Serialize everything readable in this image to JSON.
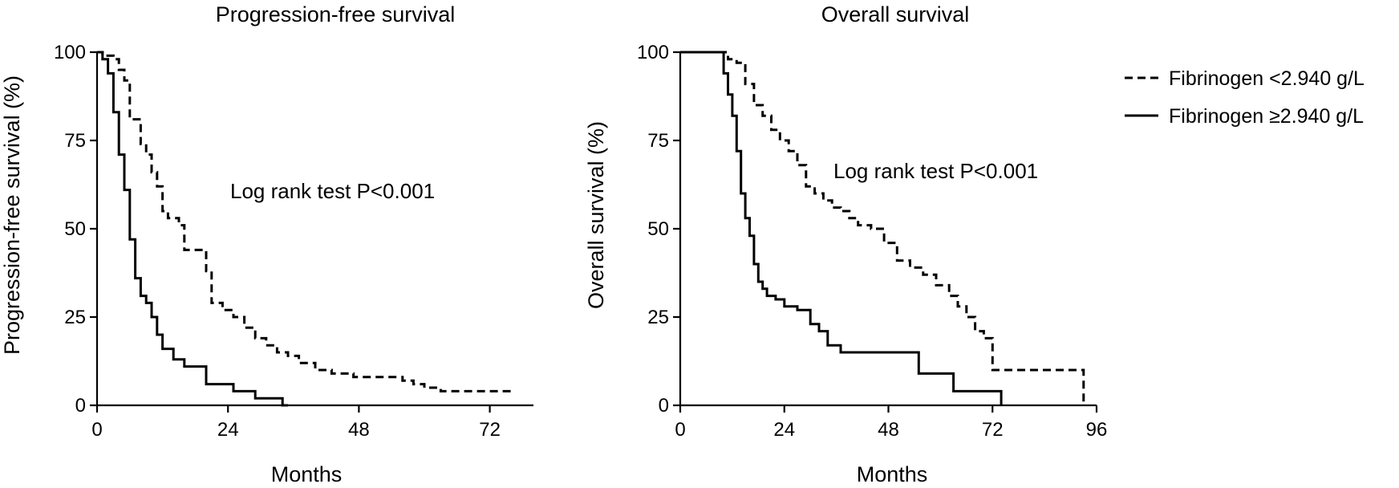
{
  "chart_data": [
    {
      "type": "line",
      "subtype": "kaplan-meier",
      "title": "Progression-free survival",
      "xlabel": "Months",
      "ylabel": "Progression-free survival (%)",
      "xlim": [
        0,
        80
      ],
      "ylim": [
        0,
        100
      ],
      "xticks": [
        0,
        24,
        48,
        72
      ],
      "yticks": [
        0,
        25,
        50,
        75,
        100
      ],
      "annotation": "Log rank test P<0.001",
      "series": [
        {
          "name": "Fibrinogen <2.940 g/L",
          "style": "dashed",
          "x": [
            0,
            1,
            3,
            4,
            5,
            6,
            8,
            9,
            10,
            11,
            12,
            13,
            15,
            16,
            19,
            20,
            21,
            23,
            25,
            27,
            29,
            31,
            33,
            35,
            37,
            40,
            43,
            47,
            51,
            56,
            58,
            60,
            63,
            67,
            72,
            76
          ],
          "y": [
            100,
            99,
            98,
            95,
            92,
            81,
            74,
            71,
            66,
            62,
            55,
            53,
            51,
            44,
            44,
            38,
            29,
            27,
            25,
            22,
            19,
            17,
            15,
            14,
            12,
            10,
            9,
            8,
            8,
            7,
            6,
            5,
            4,
            4,
            4,
            4
          ]
        },
        {
          "name": "Fibrinogen ≥2.940 g/L",
          "style": "solid",
          "x": [
            0,
            1,
            2,
            3,
            4,
            5,
            6,
            7,
            8,
            9,
            10,
            11,
            12,
            14,
            16,
            20,
            25,
            29,
            34,
            35
          ],
          "y": [
            100,
            98,
            94,
            83,
            71,
            61,
            47,
            36,
            31,
            29,
            25,
            20,
            16,
            13,
            11,
            6,
            4,
            2,
            0,
            0
          ]
        }
      ]
    },
    {
      "type": "line",
      "subtype": "kaplan-meier",
      "title": "Overall survival",
      "xlabel": "Months",
      "ylabel": "Overall survival (%)",
      "xlim": [
        0,
        96
      ],
      "ylim": [
        0,
        100
      ],
      "xticks": [
        0,
        24,
        48,
        72,
        96
      ],
      "yticks": [
        0,
        25,
        50,
        75,
        100
      ],
      "annotation": "Log rank test P<0.001",
      "series": [
        {
          "name": "Fibrinogen <2.940 g/L",
          "style": "dashed",
          "x": [
            0,
            11,
            13,
            15,
            17,
            19,
            21,
            23,
            25,
            27,
            29,
            31,
            33,
            35,
            37,
            39,
            41,
            44,
            47,
            50,
            53,
            56,
            59,
            62,
            64,
            66,
            68,
            70,
            72,
            92,
            93
          ],
          "y": [
            100,
            98,
            97,
            91,
            85,
            82,
            78,
            75,
            72,
            68,
            62,
            60,
            58,
            56,
            55,
            53,
            51,
            50,
            46,
            41,
            39,
            37,
            34,
            31,
            28,
            25,
            21,
            19,
            10,
            10,
            0
          ]
        },
        {
          "name": "Fibrinogen ≥2.940 g/L",
          "style": "solid",
          "x": [
            0,
            10,
            11,
            12,
            13,
            14,
            15,
            16,
            17,
            18,
            19,
            20,
            22,
            24,
            27,
            30,
            32,
            34,
            37,
            40,
            44,
            48,
            55,
            63,
            73,
            74
          ],
          "y": [
            100,
            94,
            88,
            82,
            72,
            60,
            53,
            48,
            40,
            35,
            33,
            31,
            30,
            28,
            27,
            23,
            21,
            17,
            15,
            15,
            15,
            15,
            9,
            4,
            4,
            0
          ]
        }
      ]
    }
  ],
  "legend": {
    "placement": "top-right",
    "items": [
      {
        "label": "Fibrinogen <2.940 g/L",
        "style": "dashed"
      },
      {
        "label": "Fibrinogen ≥2.940 g/L",
        "style": "solid"
      }
    ]
  }
}
